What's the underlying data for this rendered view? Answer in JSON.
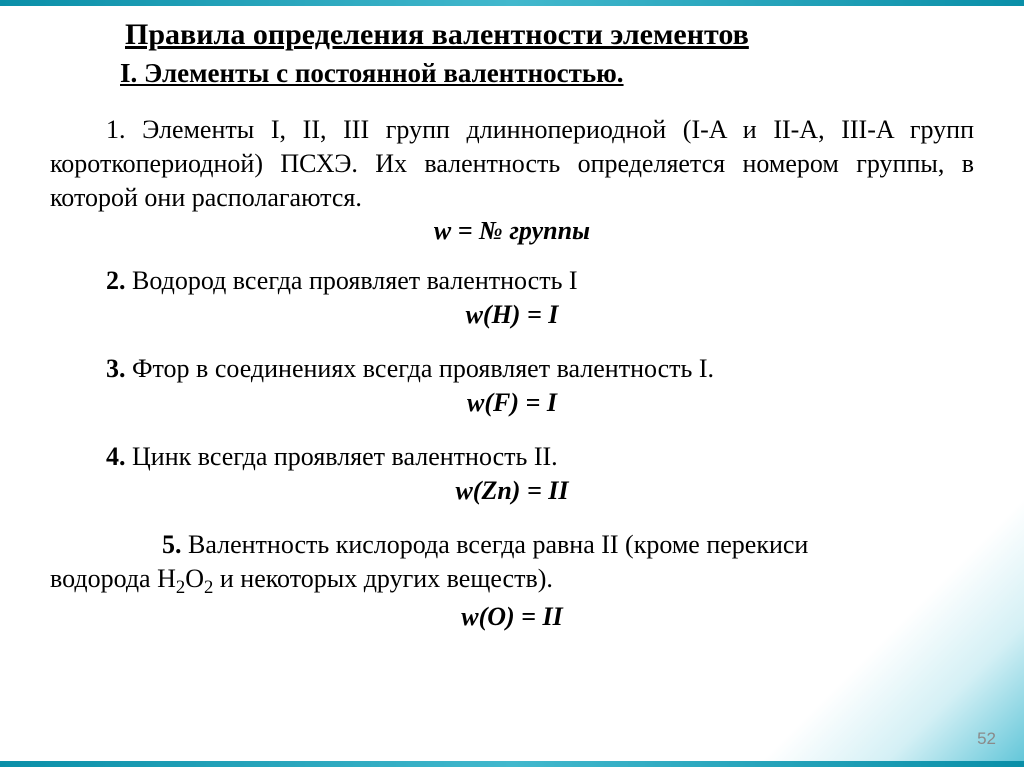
{
  "slide": {
    "number": "52",
    "background_gradient": [
      "#ffffff",
      "#d4f0f5",
      "#5fc5d8"
    ],
    "border_color": "#0a8fa8"
  },
  "title": {
    "main": "Правила определения валентности элементов",
    "sub": "I. Элементы с постоянной валентностью.",
    "fontsize": 30,
    "color": "#000000"
  },
  "rules": {
    "r1": {
      "text_a": "1. Элементы I, II, III групп длиннопериодной (I-A и II-A, III-A групп короткопериодной) ПСХЭ. Их валентность определяется номером группы, в которой они располагаются.",
      "formula": "w = № группы"
    },
    "r2": {
      "text": "2. Водород всегда проявляет валентность I",
      "formula": "w(H) = I"
    },
    "r3": {
      "text": "3. Фтор в соединениях всегда проявляет валентность I.",
      "formula": "w(F) = I"
    },
    "r4": {
      "text": "4. Цинк всегда проявляет валентность II.",
      "formula": "w(Zn) = II"
    },
    "r5": {
      "text_a": "5. Валентность кислорода всегда равна II (кроме перекиси",
      "text_b": "водорода H₂O₂ и некоторых других веществ).",
      "formula": "w(O) = II"
    }
  },
  "typography": {
    "body_fontsize": 26,
    "font_family": "Times New Roman",
    "text_color": "#000000"
  }
}
